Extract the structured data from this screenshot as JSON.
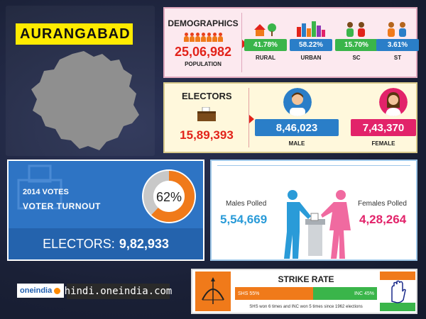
{
  "district": "AURANGABAD",
  "demographics": {
    "heading": "DEMOGRAPHICS",
    "population_value": "25,06,982",
    "population_label": "POPULATION",
    "items": [
      {
        "value": "41.78%",
        "label": "RURAL",
        "color": "#3ab54a"
      },
      {
        "value": "58.22%",
        "label": "URBAN",
        "color": "#2a7ec8"
      },
      {
        "value": "15.70%",
        "label": "SC",
        "color": "#3ab54a"
      },
      {
        "value": "3.61%",
        "label": "ST",
        "color": "#2a7ec8"
      }
    ]
  },
  "electors": {
    "heading": "ELECTORS",
    "value": "15,89,393",
    "male_value": "8,46,023",
    "male_label": "MALE",
    "male_color": "#2a7ec8",
    "female_value": "7,43,370",
    "female_label": "FEMALE",
    "female_color": "#e2236a"
  },
  "votes": {
    "year_label": "2014 VOTES",
    "title": "VOTER TURNOUT",
    "turnout_percent": 62,
    "turnout_label": "62%",
    "footer_label": "ELECTORS:",
    "footer_value": "9,82,933"
  },
  "polled": {
    "males_label": "Males Polled",
    "males_value": "5,54,669",
    "females_label": "Females Polled",
    "females_value": "4,28,264"
  },
  "brand": {
    "logo_text": "oneindia",
    "url": "hindi.oneindia.com"
  },
  "strike_rate": {
    "title": "STRIKE RATE",
    "shs_label": "SHS 55%",
    "shs_percent": 55,
    "shs_color": "#f07a1a",
    "inc_label": "INC 45%",
    "inc_percent": 45,
    "inc_color": "#3ab54a",
    "note": "SHS won 6 times and INC won 5 times since 1962 elections"
  }
}
